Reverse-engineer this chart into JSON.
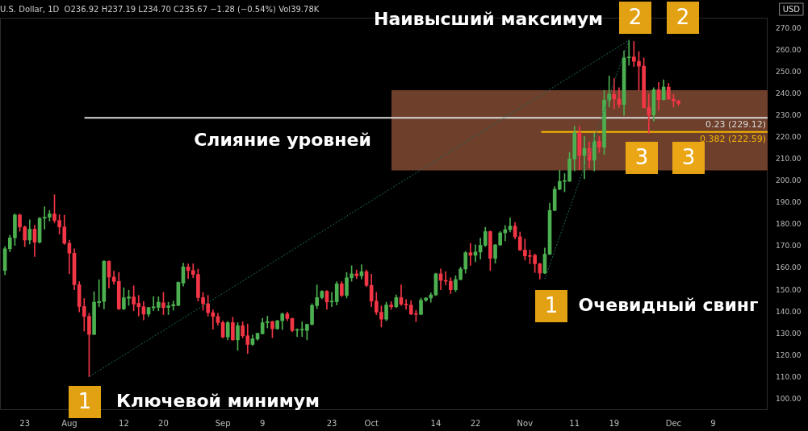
{
  "chart_data": {
    "type": "candlestick",
    "title": "U.S. Dollar, 1D  O236.92 H237.19 L234.70 C235.67 −1.28 (−0.54%) Vol39.78K",
    "ylabel": "USD",
    "colors": [
      "#4caf50",
      "#4caf50",
      "#4caf50",
      "#f23645",
      "#f23645",
      "#4caf50",
      "#f23645",
      "#4caf50",
      "#4caf50",
      "#4caf50",
      "#f23645",
      "#f23645",
      "#f23645",
      "#f23645",
      "#f23645",
      "#f23645",
      "#f23645",
      "#f23645",
      "#4caf50",
      "#4caf50",
      "#4caf50",
      "#f23645",
      "#f23645",
      "#f23645",
      "#4caf50",
      "#4caf50",
      "#f23645",
      "#f23645",
      "#f23645",
      "#4caf50",
      "#4caf50",
      "#4caf50",
      "#f23645",
      "#4caf50",
      "#4caf50",
      "#4caf50",
      "#4caf50",
      "#f23645",
      "#f23645",
      "#f23645",
      "#f23645",
      "#f23645",
      "#f23645",
      "#f23645",
      "#f23645",
      "#4caf50",
      "#f23645",
      "#4caf50",
      "#f23645",
      "#f23645",
      "#4caf50",
      "#4caf50",
      "#4caf50",
      "#4caf50",
      "#f23645",
      "#4caf50",
      "#4caf50",
      "#f23645",
      "#f23645",
      "#4caf50",
      "#4caf50",
      "#4caf50",
      "#4caf50",
      "#4caf50",
      "#4caf50",
      "#f23645",
      "#4caf50",
      "#4caf50",
      "#f23645",
      "#4caf50",
      "#4caf50",
      "#f23645",
      "#4caf50",
      "#f23645",
      "#f23645",
      "#f23645",
      "#f23645",
      "#4caf50",
      "#f23645",
      "#4caf50",
      "#f23645",
      "#f23645",
      "#f23645",
      "#f23645",
      "#4caf50",
      "#4caf50",
      "#4caf50",
      "#4caf50",
      "#f23645",
      "#f23645",
      "#f23645",
      "#4caf50",
      "#4caf50",
      "#4caf50",
      "#f23645",
      "#4caf50",
      "#4caf50",
      "#4caf50",
      "#f23645",
      "#4caf50",
      "#4caf50",
      "#4caf50",
      "#4caf50",
      "#f23645",
      "#f23645",
      "#f23645",
      "#f23645",
      "#f23645",
      "#f23645",
      "#4caf50",
      "#4caf50",
      "#4caf50",
      "#4caf50",
      "#4caf50",
      "#4caf50",
      "#4caf50",
      "#f23645",
      "#4caf50",
      "#f23645",
      "#4caf50",
      "#f23645",
      "#4caf50",
      "#4caf50",
      "#f23645",
      "#f23645",
      "#4caf50",
      "#4caf50",
      "#f23645",
      "#f23645",
      "#f23645",
      "#f23645",
      "#4caf50",
      "#f23645",
      "#4caf50",
      "#f23645",
      "#f23645",
      "#f23645"
    ],
    "x": [
      "--07-19",
      "--07-20",
      "--07-21",
      "--07-22",
      "--07-23",
      "--07-24",
      "--07-25",
      "--07-26",
      "--07-27",
      "--07-28",
      "--07-29",
      "--07-30",
      "--07-31",
      "--08-01",
      "--08-02",
      "--08-03",
      "--08-04",
      "--08-05",
      "--08-06",
      "--08-07",
      "--08-08",
      "--08-09",
      "--08-10",
      "--08-11",
      "--08-12",
      "--08-13",
      "--08-14",
      "--08-15",
      "--08-16",
      "--08-17",
      "--08-18",
      "--08-19",
      "--08-20",
      "--08-21",
      "--08-22",
      "--08-23",
      "--08-24",
      "--08-25",
      "--08-26",
      "--08-27",
      "--08-28",
      "--08-29",
      "--08-30",
      "--08-31",
      "--09-01",
      "--09-02",
      "--09-03",
      "--09-04",
      "--09-05",
      "--09-06",
      "--09-07",
      "--09-08",
      "--09-09",
      "--09-10",
      "--09-11",
      "--09-12",
      "--09-13",
      "--09-14",
      "--09-15",
      "--09-16",
      "--09-17",
      "--09-18",
      "--09-19",
      "--09-20",
      "--09-21",
      "--09-22",
      "--09-23",
      "--09-24",
      "--09-25",
      "--09-26",
      "--09-27",
      "--09-28",
      "--09-29",
      "--09-30",
      "--10-01",
      "--10-02",
      "--10-03",
      "--10-04",
      "--10-05",
      "--10-06",
      "--10-07",
      "--10-08",
      "--10-09",
      "--10-10",
      "--10-11",
      "--10-12",
      "--10-13",
      "--10-14",
      "--10-15",
      "--10-16",
      "--10-17",
      "--10-18",
      "--10-19",
      "--10-20",
      "--10-21",
      "--10-22",
      "--10-23",
      "--10-24",
      "--10-25",
      "--10-26",
      "--10-27",
      "--10-28",
      "--10-29",
      "--10-30",
      "--10-31",
      "--11-01",
      "--11-02",
      "--11-03",
      "--11-04",
      "--11-05",
      "--11-06",
      "--11-07",
      "--11-08",
      "--11-09",
      "--11-10",
      "--11-11",
      "--11-12",
      "--11-13",
      "--11-14",
      "--11-15",
      "--11-16",
      "--11-17",
      "--11-18",
      "--11-19",
      "--11-20",
      "--11-21",
      "--11-22",
      "--11-23",
      "--11-24",
      "--11-25",
      "--11-26",
      "--11-27",
      "--11-28",
      "--11-29",
      "--11-30",
      "--12-01",
      "--12-02"
    ],
    "ohlc": [
      [
        159,
        170,
        157,
        169
      ],
      [
        169,
        175.2,
        167.6,
        174
      ],
      [
        174,
        185,
        170.5,
        184.5
      ],
      [
        184.5,
        185,
        177,
        179
      ],
      [
        179,
        179.5,
        170,
        173
      ],
      [
        173,
        182.3,
        171.2,
        178
      ],
      [
        178,
        179.8,
        165.4,
        172
      ],
      [
        172,
        183.3,
        171.5,
        183
      ],
      [
        183,
        188.3,
        178,
        183.5
      ],
      [
        183.5,
        186.6,
        181.7,
        185
      ],
      [
        185,
        193.8,
        181,
        182
      ],
      [
        182,
        184.6,
        175.7,
        179
      ],
      [
        179,
        184.4,
        171,
        171.5
      ],
      [
        171.5,
        173,
        157.5,
        167
      ],
      [
        167,
        169,
        150.2,
        152.5
      ],
      [
        152.5,
        153.9,
        140,
        142.5
      ],
      [
        142.5,
        146.2,
        131.2,
        138
      ],
      [
        138,
        139.4,
        110.3,
        129.7
      ],
      [
        129.7,
        149.3,
        129.5,
        144.5
      ],
      [
        144.3,
        154.8,
        142.4,
        144.8
      ],
      [
        144.8,
        163.5,
        141.4,
        163.3
      ],
      [
        163.2,
        163.5,
        150.9,
        156
      ],
      [
        156,
        158.7,
        152.7,
        154
      ],
      [
        154,
        158.1,
        141,
        141.4
      ],
      [
        141.4,
        151.1,
        141,
        146.5
      ],
      [
        146.3,
        150,
        143,
        146.9
      ],
      [
        146.9,
        152,
        140.6,
        143.6
      ],
      [
        144,
        147.6,
        138.1,
        142.4
      ],
      [
        142.4,
        144.8,
        136.3,
        139
      ],
      [
        139,
        142.2,
        137.9,
        142
      ],
      [
        141.9,
        147.1,
        140.6,
        142.4
      ],
      [
        142.1,
        147,
        140.6,
        144.5
      ],
      [
        144.2,
        149,
        138.8,
        142
      ],
      [
        142.1,
        144.5,
        138.8,
        142.8
      ],
      [
        142.8,
        145,
        140.8,
        143.4
      ],
      [
        143,
        153.8,
        142.8,
        153.6
      ],
      [
        153.2,
        162.4,
        151.9,
        160.7
      ],
      [
        160.7,
        162.1,
        155.3,
        159
      ],
      [
        159,
        162.1,
        155.7,
        157.2
      ],
      [
        157.2,
        159.7,
        145,
        146.6
      ],
      [
        146.6,
        149,
        140.8,
        143.8
      ],
      [
        143.8,
        147.6,
        138.1,
        139.7
      ],
      [
        139.7,
        141,
        132.1,
        137.9
      ],
      [
        137.9,
        139.4,
        133.9,
        135.1
      ],
      [
        135.1,
        135.9,
        128,
        128.5
      ],
      [
        128.5,
        135.7,
        127.2,
        135.1
      ],
      [
        135.1,
        137.6,
        127,
        127.2
      ],
      [
        127.2,
        135.1,
        122.4,
        133.7
      ],
      [
        133.7,
        135.5,
        128.1,
        129.1
      ],
      [
        129.1,
        134.5,
        120.9,
        125.1
      ],
      [
        125.1,
        129.4,
        124.6,
        127.7
      ],
      [
        127.6,
        130.4,
        127,
        130.2
      ],
      [
        130,
        137.1,
        129.8,
        135.1
      ],
      [
        135.1,
        138.1,
        132.7,
        135.6
      ],
      [
        135.6,
        135.8,
        128.2,
        132.3
      ],
      [
        132.3,
        136.2,
        132,
        136
      ],
      [
        136,
        139.6,
        131.9,
        139.1
      ],
      [
        139.1,
        140,
        136,
        137
      ],
      [
        137,
        137.2,
        130.9,
        131.5
      ],
      [
        131.6,
        132.3,
        128.7,
        131.9
      ],
      [
        131.7,
        135.5,
        128.7,
        131.9
      ],
      [
        131.5,
        134.5,
        127.2,
        134.3
      ],
      [
        134.3,
        143.8,
        134,
        143
      ],
      [
        142.9,
        152.4,
        141.5,
        146.6
      ],
      [
        146.6,
        149.8,
        146,
        149.5
      ],
      [
        149.5,
        149.9,
        141.2,
        144.6
      ],
      [
        144.6,
        149,
        142.4,
        144.9
      ],
      [
        144.7,
        153.9,
        143.2,
        152.9
      ],
      [
        152.9,
        153.9,
        147,
        147.6
      ],
      [
        147.6,
        158.1,
        146.4,
        155.7
      ],
      [
        155.7,
        161.2,
        154.1,
        157.5
      ],
      [
        157.5,
        159.3,
        155.3,
        156.6
      ],
      [
        156.6,
        161.7,
        155.1,
        158.5
      ],
      [
        158.5,
        159.3,
        151.7,
        152.2
      ],
      [
        152.2,
        157.3,
        142.4,
        145
      ],
      [
        145,
        149,
        138.8,
        139.9
      ],
      [
        139.9,
        142.8,
        133.1,
        136.7
      ],
      [
        136.7,
        144.5,
        136,
        143.2
      ],
      [
        143.2,
        144.8,
        141.2,
        142.4
      ],
      [
        142.4,
        147.8,
        142,
        146.6
      ],
      [
        146.6,
        152.4,
        143,
        143.6
      ],
      [
        143.6,
        145.7,
        141.2,
        143.2
      ],
      [
        143.2,
        145.2,
        138.8,
        139
      ],
      [
        139,
        140.8,
        135.5,
        138.9
      ],
      [
        138.9,
        146.4,
        138.7,
        145.4
      ],
      [
        145.4,
        146.6,
        144.8,
        146.4
      ],
      [
        146.4,
        148.8,
        144.5,
        147.8
      ],
      [
        147.8,
        157.8,
        147.5,
        157.5
      ],
      [
        157.5,
        159.7,
        150.2,
        154.5
      ],
      [
        154.5,
        158.5,
        152.4,
        154.1
      ],
      [
        154.1,
        155.7,
        148.4,
        150.2
      ],
      [
        150.2,
        156.6,
        149.3,
        154.9
      ],
      [
        154.9,
        160.6,
        154.7,
        159.7
      ],
      [
        159.7,
        167.8,
        157.8,
        167.2
      ],
      [
        167.2,
        171.5,
        161.4,
        166
      ],
      [
        166,
        170.8,
        163,
        167.5
      ],
      [
        167.5,
        173.9,
        164.2,
        170.6
      ],
      [
        170.6,
        178.9,
        170,
        176.9
      ],
      [
        176.9,
        177.2,
        159,
        164.6
      ],
      [
        164.6,
        171,
        162.4,
        170.8
      ],
      [
        170.8,
        176.9,
        170.4,
        176.3
      ],
      [
        176.3,
        179.7,
        172.6,
        177.8
      ],
      [
        177.8,
        183.2,
        176.7,
        179.4
      ],
      [
        179.4,
        181.1,
        173.5,
        174.5
      ],
      [
        174.5,
        176.7,
        168.2,
        168.4
      ],
      [
        168.4,
        173.5,
        163.8,
        165.7
      ],
      [
        165.7,
        168.4,
        162.1,
        165.5
      ],
      [
        166,
        166.6,
        158.1,
        162.1
      ],
      [
        162.1,
        162.4,
        155.1,
        157.8
      ],
      [
        157.8,
        169.4,
        157.6,
        166.5
      ],
      [
        166.5,
        190,
        166.3,
        186.6
      ],
      [
        186.6,
        197.5,
        186.4,
        196.3
      ],
      [
        196.3,
        205,
        196,
        199.9
      ],
      [
        199.9,
        203.5,
        195.1,
        200
      ],
      [
        200,
        213.2,
        199.8,
        210.2
      ],
      [
        210.2,
        225.3,
        204.7,
        222.3
      ],
      [
        222.3,
        225.3,
        205.3,
        211.8
      ],
      [
        211.8,
        220.5,
        201.1,
        215
      ],
      [
        215,
        218,
        206,
        209.6
      ],
      [
        209.6,
        222,
        204.7,
        218.3
      ],
      [
        218.3,
        220.5,
        213.2,
        215.6
      ],
      [
        215.6,
        241.7,
        212.2,
        237.2
      ],
      [
        237.2,
        248.3,
        234,
        239.9
      ],
      [
        239.9,
        247.1,
        233.2,
        237.7
      ],
      [
        237.7,
        242.9,
        233.8,
        235.2
      ],
      [
        235.2,
        259.8,
        230.2,
        256.6
      ],
      [
        256.6,
        264.7,
        253.2,
        257
      ],
      [
        257,
        264.1,
        252.6,
        255
      ],
      [
        255,
        259.5,
        241.7,
        252.8
      ],
      [
        252.8,
        256.6,
        233.5,
        233.8
      ],
      [
        233.8,
        240.1,
        222,
        230.4
      ],
      [
        230.4,
        242.9,
        227.5,
        242
      ],
      [
        242,
        245.3,
        232.6,
        237.4
      ],
      [
        237.4,
        246.5,
        237.2,
        243.2
      ],
      [
        243.2,
        244.9,
        237.5,
        237.7
      ],
      [
        237.7,
        239.9,
        234,
        236.8
      ],
      [
        236.92,
        237.19,
        234.7,
        235.67
      ]
    ],
    "series": [
      {
        "type": "line",
        "color": "#1e6b5c",
        "line_style": "dotted",
        "marker": "none",
        "x": [
          "--08-05",
          "--11-22"
        ],
        "values": [
          110.3,
          264.7
        ]
      },
      {
        "type": "line",
        "color": "#1e6b5c",
        "line_style": "dotted",
        "marker": "none",
        "x": [
          "--11-05",
          "--11-22"
        ],
        "values": [
          155.1,
          264.7
        ]
      }
    ],
    "xlim": [
      "--07-18",
      "--12-20"
    ],
    "xticks": [
      {
        "value": "--07-23",
        "label": "23"
      },
      {
        "value": "--08-01",
        "label": "Aug"
      },
      {
        "value": "--08-12",
        "label": "12"
      },
      {
        "value": "--08-20",
        "label": "20"
      },
      {
        "value": "--09-01",
        "label": "Sep"
      },
      {
        "value": "--09-09",
        "label": "9"
      },
      {
        "value": "--09-23",
        "label": "23"
      },
      {
        "value": "--10-01",
        "label": "Oct"
      },
      {
        "value": "--10-14",
        "label": "14"
      },
      {
        "value": "--10-22",
        "label": "22"
      },
      {
        "value": "--11-01",
        "label": "Nov"
      },
      {
        "value": "--11-11",
        "label": "11"
      },
      {
        "value": "--11-19",
        "label": "19"
      },
      {
        "value": "--12-01",
        "label": "Dec"
      },
      {
        "value": "--12-09",
        "label": "9"
      }
    ],
    "ylim": [
      95,
      275
    ],
    "yticks": [
      {
        "value": 100,
        "label": "100.00"
      },
      {
        "value": 110,
        "label": "110.00"
      },
      {
        "value": 120,
        "label": "120.00"
      },
      {
        "value": 130,
        "label": "130.00"
      },
      {
        "value": 140,
        "label": "140.00"
      },
      {
        "value": 150,
        "label": "150.00"
      },
      {
        "value": 160,
        "label": "160.00"
      },
      {
        "value": 170,
        "label": "170.00"
      },
      {
        "value": 180,
        "label": "180.00"
      },
      {
        "value": 190,
        "label": "190.00"
      },
      {
        "value": 200,
        "label": "200.00"
      },
      {
        "value": 210,
        "label": "210.00"
      },
      {
        "value": 220,
        "label": "220.00"
      },
      {
        "value": 230,
        "label": "230.00"
      },
      {
        "value": 240,
        "label": "240.00"
      },
      {
        "value": 250,
        "label": "250.00"
      },
      {
        "value": 260,
        "label": "260.00"
      },
      {
        "value": 270,
        "label": "270.00"
      }
    ],
    "bands": [
      {
        "axis": "y",
        "from": 205,
        "to": 241.7,
        "color": "#6e3f2b"
      }
    ],
    "ref_lines": [
      {
        "axis": "y",
        "value": 229.12,
        "label": "0.23 (229.12)",
        "color": "#d9d9d9"
      },
      {
        "axis": "y",
        "value": 222.59,
        "label": "0.382 (222.59)",
        "color": "#f5b700"
      }
    ],
    "annotations": [
      "Наивысший максимум",
      "2",
      "2",
      "Слияние уровней",
      "3",
      "3",
      "1",
      "Очевидный свинг",
      "1",
      "Ключевой минимум"
    ]
  }
}
